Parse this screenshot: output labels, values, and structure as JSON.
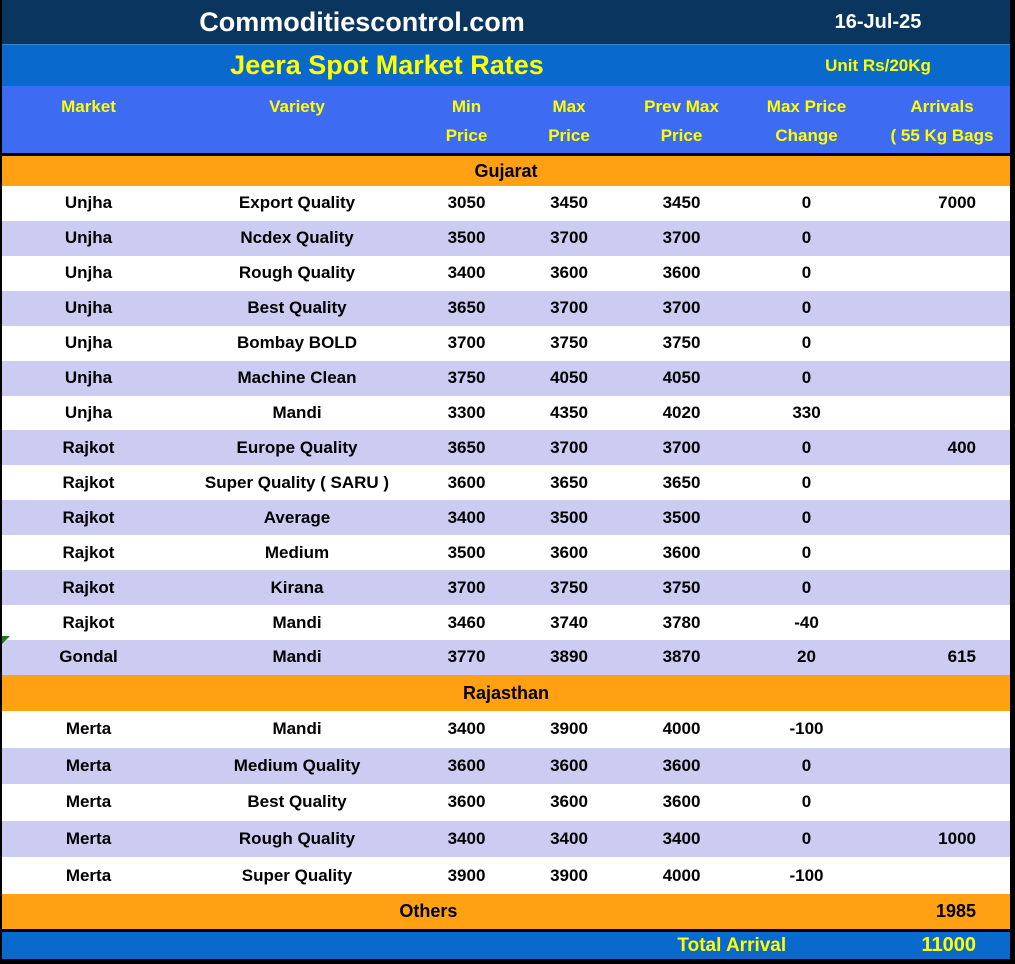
{
  "top_bar": {
    "brand": "Commoditiescontrol.com",
    "date": "16-Jul-25"
  },
  "title_bar": {
    "title": "Jeera Spot Market Rates",
    "unit": "Unit Rs/20Kg"
  },
  "column_headers": [
    [
      "Market"
    ],
    [
      "Variety"
    ],
    [
      "Min",
      "Price"
    ],
    [
      "Max",
      "Price"
    ],
    [
      "Prev Max",
      "Price"
    ],
    [
      "Max Price",
      "Change"
    ],
    [
      "Arrivals",
      "( 55 Kg Bags",
      ")"
    ]
  ],
  "others": {
    "label": "Others",
    "arrivals": "1985"
  },
  "footer": {
    "label": "Total Arrival",
    "value": "11000"
  },
  "colors": {
    "navy": "#0a355e",
    "blue_bar": "#0a69cd",
    "header_blue": "#3d6cf2",
    "orange": "#ffa113",
    "lavender": "#ccccf2",
    "yellow_text": "#ffff00",
    "marker_green": "#1f7a1f"
  },
  "chart_data": {
    "type": "table",
    "title": "Jeera Spot Market Rates",
    "unit": "Rs/20Kg",
    "date": "16-Jul-25",
    "columns": [
      "Market",
      "Variety",
      "Min Price",
      "Max Price",
      "Prev Max Price",
      "Max Price Change",
      "Arrivals ( 55 Kg Bags )"
    ],
    "sections": [
      {
        "name": "Gujarat",
        "marker_row": 13,
        "rows": [
          [
            "Unjha",
            "Export Quality",
            3050,
            3450,
            3450,
            0,
            7000
          ],
          [
            "Unjha",
            "Ncdex Quality",
            3500,
            3700,
            3700,
            0,
            ""
          ],
          [
            "Unjha",
            "Rough Quality",
            3400,
            3600,
            3600,
            0,
            ""
          ],
          [
            "Unjha",
            "Best Quality",
            3650,
            3700,
            3700,
            0,
            ""
          ],
          [
            "Unjha",
            "Bombay BOLD",
            3700,
            3750,
            3750,
            0,
            ""
          ],
          [
            "Unjha",
            "Machine Clean",
            3750,
            4050,
            4050,
            0,
            ""
          ],
          [
            "Unjha",
            "Mandi",
            3300,
            4350,
            4020,
            330,
            ""
          ],
          [
            "Rajkot",
            "Europe Quality",
            3650,
            3700,
            3700,
            0,
            400
          ],
          [
            "Rajkot",
            "Super Quality ( SARU )",
            3600,
            3650,
            3650,
            0,
            ""
          ],
          [
            "Rajkot",
            "Average",
            3400,
            3500,
            3500,
            0,
            ""
          ],
          [
            "Rajkot",
            "Medium",
            3500,
            3600,
            3600,
            0,
            ""
          ],
          [
            "Rajkot",
            "Kirana",
            3700,
            3750,
            3750,
            0,
            ""
          ],
          [
            "Rajkot",
            "Mandi",
            3460,
            3740,
            3780,
            -40,
            ""
          ],
          [
            "Gondal",
            "Mandi",
            3770,
            3890,
            3870,
            20,
            615
          ]
        ]
      },
      {
        "name": "Rajasthan",
        "rows": [
          [
            "Merta",
            "Mandi",
            3400,
            3900,
            4000,
            -100,
            ""
          ],
          [
            "Merta",
            "Medium Quality",
            3600,
            3600,
            3600,
            0,
            ""
          ],
          [
            "Merta",
            "Best Quality",
            3600,
            3600,
            3600,
            0,
            ""
          ],
          [
            "Merta",
            "Rough Quality",
            3400,
            3400,
            3400,
            0,
            1000
          ],
          [
            "Merta",
            "Super Quality",
            3900,
            3900,
            4000,
            -100,
            ""
          ]
        ]
      }
    ],
    "others_arrivals": 1985,
    "total_arrival": 11000
  }
}
